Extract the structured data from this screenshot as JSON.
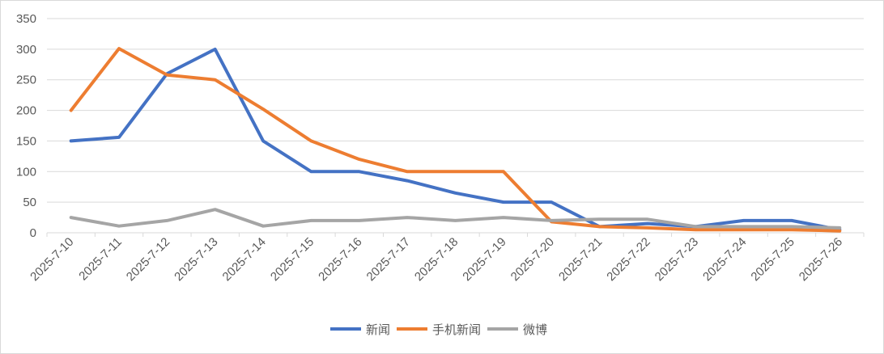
{
  "chart_data": {
    "type": "line",
    "title": "",
    "xlabel": "",
    "ylabel": "",
    "ylim": [
      0,
      350
    ],
    "yticks": [
      0,
      50,
      100,
      150,
      200,
      250,
      300,
      350
    ],
    "grid": "horizontal",
    "legend_position": "bottom",
    "categories": [
      "2025-7-10",
      "2025-7-11",
      "2025-7-12",
      "2025-7-13",
      "2025-7-14",
      "2025-7-15",
      "2025-7-16",
      "2025-7-17",
      "2025-7-18",
      "2025-7-19",
      "2025-7-20",
      "2025-7-21",
      "2025-7-22",
      "2025-7-23",
      "2025-7-24",
      "2025-7-25",
      "2025-7-26"
    ],
    "series": [
      {
        "name": "新闻",
        "color": "#4472C4",
        "values": [
          150,
          156,
          260,
          300,
          150,
          100,
          100,
          85,
          65,
          50,
          50,
          10,
          15,
          10,
          20,
          20,
          5
        ]
      },
      {
        "name": "手机新闻",
        "color": "#ED7D31",
        "values": [
          200,
          301,
          258,
          250,
          202,
          150,
          120,
          100,
          100,
          100,
          18,
          10,
          8,
          5,
          5,
          5,
          3
        ]
      },
      {
        "name": "微博",
        "color": "#A5A5A5",
        "values": [
          25,
          11,
          20,
          38,
          11,
          20,
          20,
          25,
          20,
          25,
          20,
          22,
          22,
          10,
          10,
          10,
          8
        ]
      }
    ]
  }
}
